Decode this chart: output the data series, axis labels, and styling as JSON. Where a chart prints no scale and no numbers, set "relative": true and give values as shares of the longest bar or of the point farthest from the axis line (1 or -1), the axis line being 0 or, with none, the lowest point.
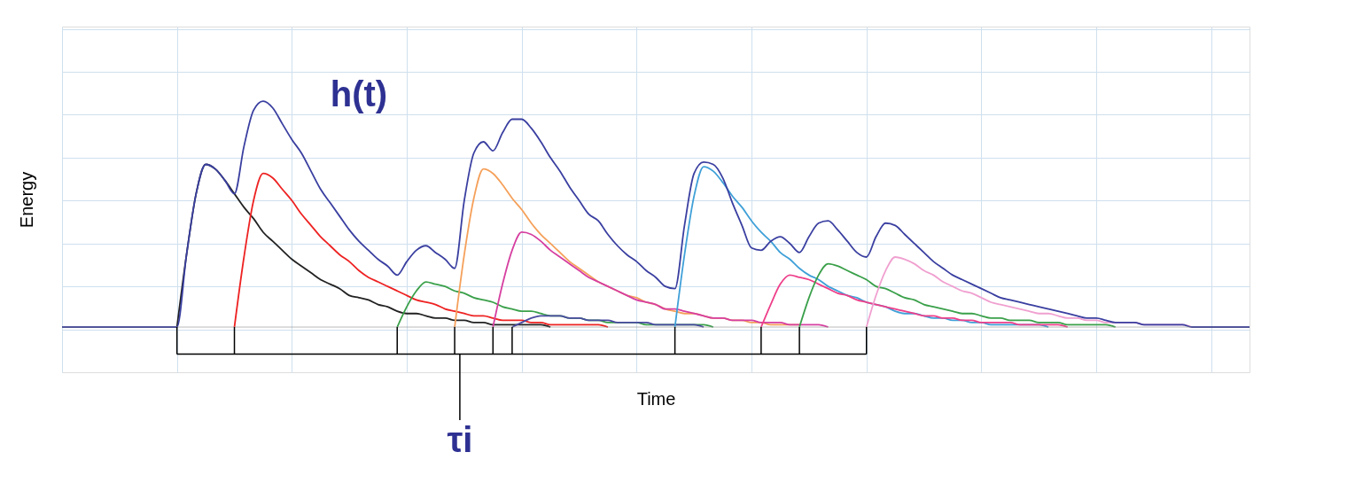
{
  "chart_data": {
    "type": "line",
    "relative": true,
    "xlabel": "Time",
    "ylabel": "Energy",
    "grid": true,
    "tick_labels": false,
    "line_style": "solid",
    "categories": [
      null,
      null,
      null,
      null,
      null,
      null,
      null,
      null,
      null,
      null,
      null,
      null,
      null,
      null,
      null,
      null,
      null,
      null,
      null,
      null,
      null,
      null,
      null,
      null,
      null,
      null,
      null,
      null,
      null,
      null,
      null,
      null,
      null,
      null,
      null,
      null,
      null,
      null,
      null,
      null,
      null,
      null,
      null,
      null,
      null,
      null,
      null,
      null,
      null,
      null,
      null,
      null,
      null,
      null,
      null,
      null,
      null,
      null,
      null,
      null,
      null,
      null,
      null,
      null,
      null,
      null,
      null,
      null,
      null,
      null,
      null,
      null,
      null,
      null,
      null,
      null,
      null,
      null,
      null,
      null,
      null,
      null,
      null,
      null,
      null,
      null,
      null,
      null,
      null,
      null,
      null,
      null,
      null,
      null,
      null,
      null,
      null,
      null,
      null,
      null,
      null,
      null,
      null,
      null,
      null,
      null,
      null,
      null,
      null,
      null,
      null,
      null,
      null,
      null,
      null,
      null,
      null,
      null,
      null,
      null,
      null,
      null,
      null,
      null,
      null
    ],
    "annotations": [
      "h(t)",
      "τi"
    ],
    "series": [
      {
        "color": "#222222",
        "values": [
          null,
          null,
          null,
          null,
          null,
          null,
          null,
          null,
          null,
          null,
          null,
          null,
          0,
          0.32,
          0.59,
          0.72,
          0.7,
          0.65,
          0.59,
          0.53,
          0.48,
          0.42,
          0.38,
          0.34,
          0.3,
          0.27,
          0.24,
          0.21,
          0.19,
          0.17,
          0.14,
          0.13,
          0.12,
          0.1,
          0.09,
          0.07,
          0.06,
          0.06,
          0.05,
          0.04,
          0.04,
          0.03,
          0.03,
          0.02,
          0.02,
          0.01,
          0.01,
          0.01,
          0.01,
          0.01,
          0.01,
          0,
          null,
          null,
          null,
          null,
          null,
          null,
          null,
          null,
          null,
          null,
          null,
          null,
          null,
          null,
          null,
          null,
          null,
          null,
          null,
          null,
          null,
          null,
          null,
          null,
          null,
          null,
          null,
          null,
          null,
          null,
          null,
          null,
          null,
          null,
          null,
          null,
          null,
          null,
          null,
          null,
          null,
          null,
          null,
          null,
          null,
          null,
          null,
          null,
          null,
          null,
          null,
          null,
          null,
          null,
          null,
          null,
          null,
          null,
          null,
          null,
          null,
          null,
          null,
          null,
          null,
          null,
          null,
          null,
          null,
          null,
          null,
          null,
          null
        ]
      },
      {
        "color": "#ee2222",
        "values": [
          null,
          null,
          null,
          null,
          null,
          null,
          null,
          null,
          null,
          null,
          null,
          null,
          null,
          null,
          null,
          null,
          null,
          null,
          0,
          0.31,
          0.56,
          0.68,
          0.66,
          0.61,
          0.56,
          0.5,
          0.45,
          0.4,
          0.36,
          0.32,
          0.29,
          0.25,
          0.22,
          0.2,
          0.18,
          0.16,
          0.14,
          0.12,
          0.11,
          0.1,
          0.08,
          0.07,
          0.06,
          0.05,
          0.05,
          0.04,
          0.03,
          0.03,
          0.03,
          0.02,
          0.02,
          0.01,
          0.01,
          0.01,
          0.01,
          0.01,
          0.01,
          0,
          null,
          null,
          null,
          null,
          null,
          null,
          null,
          null,
          null,
          null,
          null,
          null,
          null,
          null,
          null,
          null,
          null,
          null,
          null,
          null,
          null,
          null,
          null,
          null,
          null,
          null,
          null,
          null,
          null,
          null,
          null,
          null,
          null,
          null,
          null,
          null,
          null,
          null,
          null,
          null,
          null,
          null,
          null,
          null,
          null,
          null,
          null,
          null,
          null,
          null,
          null,
          null,
          null,
          null,
          null,
          null,
          null,
          null,
          null,
          null,
          null,
          null,
          null,
          null,
          null,
          null,
          null
        ]
      },
      {
        "color": "#3aa04a",
        "values": [
          null,
          null,
          null,
          null,
          null,
          null,
          null,
          null,
          null,
          null,
          null,
          null,
          null,
          null,
          null,
          null,
          null,
          null,
          null,
          null,
          null,
          null,
          null,
          null,
          null,
          null,
          null,
          null,
          null,
          null,
          null,
          null,
          null,
          null,
          null,
          0,
          0.09,
          0.16,
          0.2,
          0.19,
          0.18,
          0.16,
          0.15,
          0.13,
          0.12,
          0.11,
          0.09,
          0.08,
          0.07,
          0.07,
          0.06,
          0.05,
          0.05,
          0.04,
          0.04,
          0.03,
          0.03,
          0.02,
          0.02,
          0.02,
          0.02,
          0.01,
          0.01,
          0.01,
          0.01,
          0.01,
          0.01,
          0.01,
          0,
          null,
          null,
          null,
          null,
          null,
          null,
          null,
          null,
          null,
          null,
          null,
          null,
          null,
          null,
          null,
          null,
          null,
          null,
          null,
          null,
          null,
          null,
          null,
          null,
          null,
          null,
          null,
          null,
          null,
          null,
          null,
          null,
          null,
          null,
          null,
          null,
          null,
          null,
          null,
          null,
          null,
          null,
          null,
          null,
          null,
          null,
          null,
          null,
          null,
          null,
          null,
          null,
          null,
          null,
          null,
          null
        ]
      },
      {
        "color": "#f5a05a",
        "values": [
          null,
          null,
          null,
          null,
          null,
          null,
          null,
          null,
          null,
          null,
          null,
          null,
          null,
          null,
          null,
          null,
          null,
          null,
          null,
          null,
          null,
          null,
          null,
          null,
          null,
          null,
          null,
          null,
          null,
          null,
          null,
          null,
          null,
          null,
          null,
          null,
          null,
          null,
          null,
          null,
          null,
          0,
          0.32,
          0.57,
          0.7,
          0.68,
          0.63,
          0.57,
          0.52,
          0.46,
          0.41,
          0.37,
          0.33,
          0.29,
          0.26,
          0.23,
          0.2,
          0.18,
          0.16,
          0.14,
          0.13,
          0.11,
          0.1,
          0.08,
          0.07,
          0.06,
          0.06,
          0.05,
          0.04,
          0.04,
          0.03,
          0.03,
          0.02,
          0.02,
          0.01,
          0.01,
          0.01,
          0.01,
          null,
          null,
          null,
          null,
          null,
          null,
          null,
          null,
          null,
          null,
          null,
          null,
          null,
          null,
          null,
          null,
          null,
          null,
          null,
          null,
          null,
          null,
          null,
          null,
          null,
          null,
          null,
          null,
          null,
          null,
          null,
          null,
          null,
          null,
          null,
          null,
          null,
          null,
          null,
          null,
          null,
          null,
          null,
          null,
          null,
          null,
          null
        ]
      },
      {
        "color": "#d63fa0",
        "values": [
          null,
          null,
          null,
          null,
          null,
          null,
          null,
          null,
          null,
          null,
          null,
          null,
          null,
          null,
          null,
          null,
          null,
          null,
          null,
          null,
          null,
          null,
          null,
          null,
          null,
          null,
          null,
          null,
          null,
          null,
          null,
          null,
          null,
          null,
          null,
          null,
          null,
          null,
          null,
          null,
          null,
          null,
          null,
          null,
          null,
          0,
          0.19,
          0.34,
          0.42,
          0.41,
          0.38,
          0.34,
          0.31,
          0.28,
          0.25,
          0.22,
          0.2,
          0.18,
          0.16,
          0.14,
          0.12,
          0.11,
          0.1,
          0.08,
          0.08,
          0.07,
          0.06,
          0.05,
          0.04,
          0.04,
          0.03,
          0.03,
          0.03,
          0.02,
          0.02,
          0.02,
          0.01,
          0.01,
          0.01,
          0.01,
          0,
          null,
          null,
          null,
          null,
          null,
          null,
          null,
          null,
          null,
          null,
          null,
          null,
          null,
          null,
          null,
          null,
          null,
          null,
          null,
          null,
          null,
          null,
          null,
          null,
          null,
          null,
          null,
          null,
          null,
          null,
          null,
          null,
          null,
          null,
          null,
          null,
          null,
          null,
          null,
          null,
          null,
          null,
          null,
          null
        ]
      },
      {
        "color": "#4a4aa0",
        "values": [
          null,
          null,
          null,
          null,
          null,
          null,
          null,
          null,
          null,
          null,
          null,
          null,
          null,
          null,
          null,
          null,
          null,
          null,
          null,
          null,
          null,
          null,
          null,
          null,
          null,
          null,
          null,
          null,
          null,
          null,
          null,
          null,
          null,
          null,
          null,
          null,
          null,
          null,
          null,
          null,
          null,
          null,
          null,
          null,
          null,
          null,
          null,
          0,
          0.02,
          0.04,
          0.05,
          0.05,
          0.05,
          0.04,
          0.04,
          0.03,
          0.03,
          0.03,
          0.02,
          0.02,
          0.02,
          0.02,
          0.01,
          0.01,
          0.01,
          0.01,
          0.01,
          0,
          null,
          null,
          null,
          null,
          null,
          null,
          null,
          null,
          null,
          null,
          null,
          null,
          null,
          null,
          null,
          null,
          null,
          null,
          null,
          null,
          null,
          null,
          null,
          null,
          null,
          null,
          null,
          null,
          null,
          null,
          null,
          null,
          null,
          null,
          null,
          null,
          null,
          null,
          null,
          null,
          null,
          null,
          null,
          null,
          null,
          null,
          null,
          null,
          null,
          null,
          null,
          null,
          null,
          null,
          null,
          null,
          null
        ]
      },
      {
        "color": "#3fa0d8",
        "values": [
          null,
          null,
          null,
          null,
          null,
          null,
          null,
          null,
          null,
          null,
          null,
          null,
          null,
          null,
          null,
          null,
          null,
          null,
          null,
          null,
          null,
          null,
          null,
          null,
          null,
          null,
          null,
          null,
          null,
          null,
          null,
          null,
          null,
          null,
          null,
          null,
          null,
          null,
          null,
          null,
          null,
          null,
          null,
          null,
          null,
          null,
          null,
          null,
          null,
          null,
          null,
          null,
          null,
          null,
          null,
          null,
          null,
          null,
          null,
          null,
          null,
          null,
          null,
          null,
          0,
          0.32,
          0.58,
          0.71,
          0.69,
          0.64,
          0.58,
          0.53,
          0.47,
          0.42,
          0.38,
          0.33,
          0.3,
          0.26,
          0.23,
          0.21,
          0.18,
          0.16,
          0.14,
          0.13,
          0.11,
          0.1,
          0.09,
          0.07,
          0.06,
          0.06,
          0.05,
          0.04,
          0.04,
          0.03,
          0.03,
          0.02,
          0.02,
          0.01,
          0.01,
          0.01,
          0.01,
          0.01,
          0.01,
          0,
          null,
          null,
          null,
          null,
          null,
          null,
          null,
          null,
          null,
          null,
          null,
          null,
          null,
          null,
          null,
          null,
          null,
          null,
          null,
          null,
          null
        ]
      },
      {
        "color": "#ee3f8a",
        "values": [
          null,
          null,
          null,
          null,
          null,
          null,
          null,
          null,
          null,
          null,
          null,
          null,
          null,
          null,
          null,
          null,
          null,
          null,
          null,
          null,
          null,
          null,
          null,
          null,
          null,
          null,
          null,
          null,
          null,
          null,
          null,
          null,
          null,
          null,
          null,
          null,
          null,
          null,
          null,
          null,
          null,
          null,
          null,
          null,
          null,
          null,
          null,
          null,
          null,
          null,
          null,
          null,
          null,
          null,
          null,
          null,
          null,
          null,
          null,
          null,
          null,
          null,
          null,
          null,
          null,
          null,
          null,
          null,
          null,
          null,
          null,
          null,
          null,
          0,
          0.1,
          0.19,
          0.23,
          0.22,
          0.21,
          0.19,
          0.17,
          0.15,
          0.14,
          0.12,
          0.11,
          0.1,
          0.09,
          0.08,
          0.07,
          0.06,
          0.05,
          0.05,
          0.04,
          0.04,
          0.03,
          0.03,
          0.02,
          0.02,
          0.02,
          0.02,
          0.01,
          0.01,
          0.01,
          0.01,
          0.01,
          0,
          null,
          null,
          null,
          null,
          null,
          null,
          null,
          null,
          null,
          null,
          null,
          null,
          null,
          null,
          null,
          null,
          null,
          null,
          null
        ]
      },
      {
        "color": "#3aa04a",
        "values": [
          null,
          null,
          null,
          null,
          null,
          null,
          null,
          null,
          null,
          null,
          null,
          null,
          null,
          null,
          null,
          null,
          null,
          null,
          null,
          null,
          null,
          null,
          null,
          null,
          null,
          null,
          null,
          null,
          null,
          null,
          null,
          null,
          null,
          null,
          null,
          null,
          null,
          null,
          null,
          null,
          null,
          null,
          null,
          null,
          null,
          null,
          null,
          null,
          null,
          null,
          null,
          null,
          null,
          null,
          null,
          null,
          null,
          null,
          null,
          null,
          null,
          null,
          null,
          null,
          null,
          null,
          null,
          null,
          null,
          null,
          null,
          null,
          null,
          null,
          null,
          null,
          null,
          0,
          0.13,
          0.23,
          0.28,
          0.27,
          0.25,
          0.23,
          0.21,
          0.18,
          0.17,
          0.15,
          0.13,
          0.12,
          0.1,
          0.09,
          0.08,
          0.07,
          0.06,
          0.06,
          0.05,
          0.04,
          0.04,
          0.03,
          0.03,
          0.03,
          0.02,
          0.02,
          0.02,
          0.01,
          0.01,
          0.01,
          0.01,
          0.01,
          0,
          null,
          null,
          null,
          null,
          null,
          null,
          null,
          null,
          null,
          null,
          null,
          null,
          null,
          null
        ]
      },
      {
        "color": "#f0a0d0",
        "values": [
          null,
          null,
          null,
          null,
          null,
          null,
          null,
          null,
          null,
          null,
          null,
          null,
          null,
          null,
          null,
          null,
          null,
          null,
          null,
          null,
          null,
          null,
          null,
          null,
          null,
          null,
          null,
          null,
          null,
          null,
          null,
          null,
          null,
          null,
          null,
          null,
          null,
          null,
          null,
          null,
          null,
          null,
          null,
          null,
          null,
          null,
          null,
          null,
          null,
          null,
          null,
          null,
          null,
          null,
          null,
          null,
          null,
          null,
          null,
          null,
          null,
          null,
          null,
          null,
          null,
          null,
          null,
          null,
          null,
          null,
          null,
          null,
          null,
          null,
          null,
          null,
          null,
          null,
          null,
          null,
          null,
          null,
          null,
          null,
          0,
          0.14,
          0.25,
          0.31,
          0.3,
          0.28,
          0.25,
          0.23,
          0.2,
          0.18,
          0.16,
          0.15,
          0.13,
          0.11,
          0.1,
          0.09,
          0.08,
          0.07,
          0.06,
          0.06,
          0.05,
          0.04,
          0.04,
          0.03,
          0.03,
          0.02,
          0.02,
          0.02,
          0.02,
          0.01,
          0.01,
          0.01,
          0.01,
          0.01,
          0,
          null,
          null,
          null,
          null,
          null,
          null
        ]
      },
      {
        "color": "#3a3fa0",
        "values": [
          0,
          0,
          0,
          0,
          0,
          0,
          0,
          0,
          0,
          0,
          0,
          0,
          0,
          0.32,
          0.59,
          0.72,
          0.7,
          0.65,
          0.59,
          0.8,
          0.96,
          1,
          0.97,
          0.9,
          0.83,
          0.77,
          0.69,
          0.61,
          0.55,
          0.49,
          0.43,
          0.38,
          0.34,
          0.3,
          0.27,
          0.23,
          0.29,
          0.34,
          0.36,
          0.33,
          0.3,
          0.26,
          0.56,
          0.77,
          0.82,
          0.78,
          0.86,
          0.92,
          0.92,
          0.88,
          0.82,
          0.75,
          0.69,
          0.62,
          0.56,
          0.5,
          0.47,
          0.41,
          0.36,
          0.32,
          0.29,
          0.25,
          0.22,
          0.18,
          0.17,
          0.45,
          0.68,
          0.73,
          0.72,
          0.66,
          0.55,
          0.45,
          0.35,
          0.34,
          0.38,
          0.4,
          0.37,
          0.33,
          0.4,
          0.46,
          0.47,
          0.43,
          0.38,
          0.33,
          0.31,
          0.4,
          0.46,
          0.45,
          0.41,
          0.37,
          0.33,
          0.29,
          0.26,
          0.23,
          0.21,
          0.19,
          0.17,
          0.15,
          0.13,
          0.12,
          0.11,
          0.1,
          0.09,
          0.08,
          0.07,
          0.06,
          0.05,
          0.04,
          0.04,
          0.03,
          0.02,
          0.02,
          0.02,
          0.01,
          0.01,
          0.01,
          0.01,
          0.01,
          0,
          0,
          0,
          0,
          0,
          0,
          0
        ]
      }
    ]
  }
}
